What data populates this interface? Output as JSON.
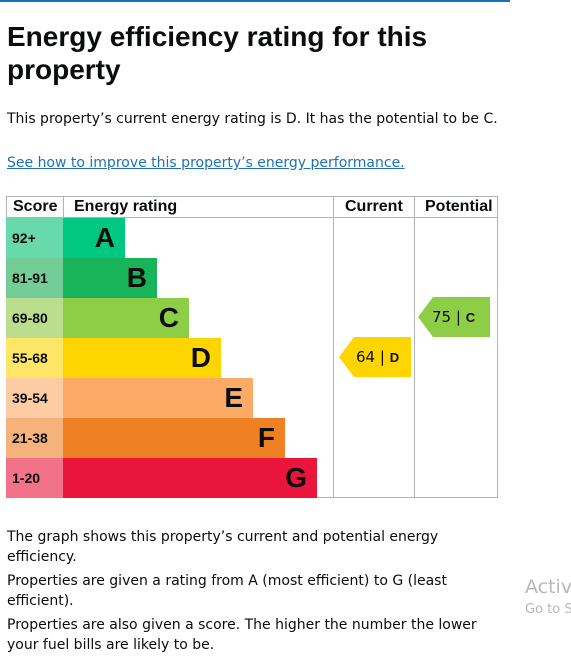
{
  "page": {
    "heading": "Energy efficiency rating for this property",
    "intro": "This property’s current energy rating is D. It has the potential to be C.",
    "improve_link": "See how to improve this property’s energy performance.",
    "paragraphs": [
      "The graph shows this property’s current and potential energy efficiency.",
      "Properties are given a rating from A (most efficient) to G (least efficient).",
      "Properties are also given a score. The higher the number the lower your fuel bills are likely to be."
    ]
  },
  "chart_data": {
    "type": "table",
    "headers": {
      "score": "Score",
      "rating": "Energy rating",
      "current": "Current",
      "potential": "Potential"
    },
    "bands": [
      {
        "range": "92+",
        "letter": "A",
        "color": "#00c781",
        "score_bg": "#67d9ab"
      },
      {
        "range": "81-91",
        "letter": "B",
        "color": "#19b459",
        "score_bg": "#74cd96"
      },
      {
        "range": "69-80",
        "letter": "C",
        "color": "#8dce46",
        "score_bg": "#baDD8e"
      },
      {
        "range": "55-68",
        "letter": "D",
        "color": "#ffd500",
        "score_bg": "#ffe666"
      },
      {
        "range": "39-54",
        "letter": "E",
        "color": "#fcaa65",
        "score_bg": "#fdcca3"
      },
      {
        "range": "21-38",
        "letter": "F",
        "color": "#ef8023",
        "score_bg": "#f5b37b"
      },
      {
        "range": "1-20",
        "letter": "G",
        "color": "#e9153b",
        "score_bg": "#f27389"
      }
    ],
    "current": {
      "score": "64",
      "letter": "D"
    },
    "potential": {
      "score": "75",
      "letter": "C"
    }
  },
  "watermark": {
    "line1": "Activa",
    "line2": "Go to S"
  }
}
